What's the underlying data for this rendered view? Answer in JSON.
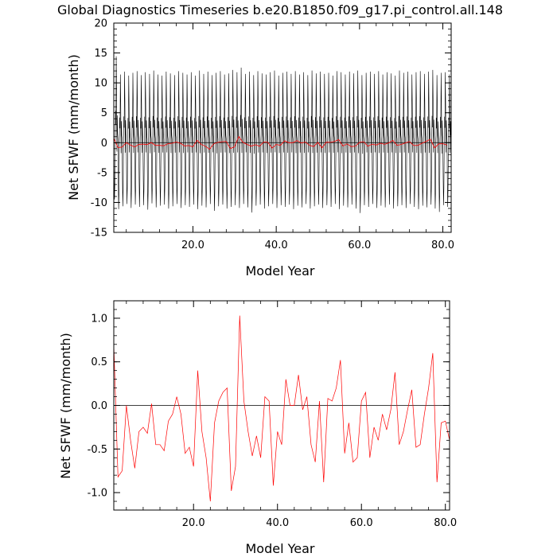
{
  "title": "Global Diagnostics Timeseries b.e20.B1850.f09_g17.pi_control.all.148",
  "chart_data": [
    {
      "type": "line",
      "xlabel": "Model Year",
      "ylabel": "Net SFWF (mm/month)",
      "xlim": [
        1,
        82
      ],
      "ylim": [
        -15,
        20
      ],
      "xticks": [
        20,
        40,
        60,
        80
      ],
      "xtick_labels": [
        "20.0",
        "40.0",
        "60.0",
        "80.0"
      ],
      "yticks": [
        -15,
        -10,
        -5,
        0,
        5,
        10,
        15,
        20
      ],
      "ytick_labels": [
        "-15",
        "-10",
        "-5",
        "0",
        "5",
        "10",
        "15",
        "20"
      ],
      "reference_line": 0,
      "monthly_series": {
        "color": "#000000",
        "start_year": 1,
        "points_per_year": 12,
        "yearly_max": [
          15.2,
          12.0,
          12.5,
          11.8,
          12.3,
          12.6,
          11.9,
          12.4,
          12.1,
          12.7,
          12.0,
          11.8,
          12.5,
          12.2,
          11.9,
          12.6,
          12.3,
          12.0,
          12.4,
          11.8,
          12.7,
          12.1,
          12.5,
          11.9,
          12.3,
          12.6,
          12.0,
          12.2,
          12.8,
          12.4,
          13.2,
          12.1,
          12.5,
          11.9,
          12.6,
          12.2,
          12.0,
          12.4,
          12.7,
          11.8,
          12.3,
          12.5,
          12.1,
          12.6,
          12.0,
          12.4,
          11.9,
          12.7,
          12.2,
          12.5,
          12.1,
          12.3,
          11.8,
          12.6,
          12.4,
          12.0,
          12.5,
          12.2,
          12.7,
          11.9,
          12.3,
          12.5,
          12.1,
          12.6,
          12.0,
          12.4,
          12.2,
          11.8,
          12.7,
          12.3,
          12.5,
          12.0,
          12.4,
          12.6,
          12.1,
          12.5,
          12.8,
          11.9,
          12.3,
          12.4,
          12.0
        ],
        "yearly_min": [
          -10.0,
          -11.7,
          -11.2,
          -10.8,
          -11.5,
          -10.9,
          -11.3,
          -11.0,
          -11.8,
          -10.7,
          -11.4,
          -11.1,
          -10.9,
          -11.6,
          -11.2,
          -10.8,
          -11.5,
          -11.0,
          -11.3,
          -10.9,
          -11.7,
          -11.1,
          -11.4,
          -10.8,
          -12.0,
          -11.2,
          -10.9,
          -11.6,
          -11.3,
          -11.0,
          -11.5,
          -10.8,
          -11.4,
          -12.3,
          -11.1,
          -10.9,
          -11.6,
          -11.2,
          -10.8,
          -11.5,
          -11.0,
          -11.3,
          -10.9,
          -11.7,
          -11.1,
          -11.4,
          -10.8,
          -11.6,
          -11.2,
          -10.9,
          -11.5,
          -11.0,
          -11.3,
          -10.8,
          -11.7,
          -11.1,
          -11.4,
          -10.9,
          -11.6,
          -12.4,
          -11.0,
          -11.3,
          -10.8,
          -11.5,
          -11.1,
          -11.4,
          -10.9,
          -11.6,
          -11.2,
          -11.0,
          -11.5,
          -10.8,
          -11.3,
          -11.7,
          -11.1,
          -11.4,
          -10.9,
          -11.6,
          -12.2,
          -11.0,
          -11.3
        ]
      },
      "annual_series": {
        "color": "#ff0000",
        "x_start": 1,
        "x_step": 1,
        "values": [
          0.7,
          -0.82,
          -0.75,
          0.0,
          -0.4,
          -0.72,
          -0.3,
          -0.25,
          -0.32,
          0.02,
          -0.45,
          -0.45,
          -0.52,
          -0.18,
          -0.1,
          0.1,
          -0.1,
          -0.55,
          -0.48,
          -0.7,
          0.4,
          -0.3,
          -0.6,
          -1.1,
          -0.2,
          0.05,
          0.15,
          0.2,
          -0.98,
          -0.7,
          1.03,
          0.05,
          -0.3,
          -0.58,
          -0.35,
          -0.6,
          0.1,
          0.05,
          -0.92,
          -0.3,
          -0.45,
          0.3,
          0.0,
          0.0,
          0.35,
          -0.05,
          0.1,
          -0.45,
          -0.65,
          0.05,
          -0.88,
          0.08,
          0.05,
          0.2,
          0.52,
          -0.55,
          -0.2,
          -0.65,
          -0.6,
          0.05,
          0.15,
          -0.6,
          -0.25,
          -0.4,
          -0.1,
          -0.28,
          -0.05,
          0.38,
          -0.45,
          -0.3,
          -0.05,
          0.18,
          -0.48,
          -0.45,
          -0.1,
          0.2,
          0.6,
          -0.88,
          -0.2,
          -0.18,
          -0.4
        ]
      }
    },
    {
      "type": "line",
      "xlabel": "Model Year",
      "ylabel": "Net SFWF (mm/month)",
      "xlim": [
        1,
        81
      ],
      "ylim": [
        -1.2,
        1.2
      ],
      "xticks": [
        20,
        40,
        60,
        80
      ],
      "xtick_labels": [
        "20.0",
        "40.0",
        "60.0",
        "80.0"
      ],
      "yticks": [
        -1.0,
        -0.5,
        0.0,
        0.5,
        1.0
      ],
      "ytick_labels": [
        "-1.0",
        "-0.5",
        "0.0",
        "0.5",
        "1.0"
      ],
      "reference_line": 0,
      "series": {
        "color": "#ff0000",
        "x_start": 1,
        "x_step": 1,
        "values": [
          0.7,
          -0.82,
          -0.75,
          0.0,
          -0.4,
          -0.72,
          -0.3,
          -0.25,
          -0.32,
          0.02,
          -0.45,
          -0.45,
          -0.52,
          -0.18,
          -0.1,
          0.1,
          -0.1,
          -0.55,
          -0.48,
          -0.7,
          0.4,
          -0.3,
          -0.6,
          -1.1,
          -0.2,
          0.05,
          0.15,
          0.2,
          -0.98,
          -0.7,
          1.03,
          0.05,
          -0.3,
          -0.58,
          -0.35,
          -0.6,
          0.1,
          0.05,
          -0.92,
          -0.3,
          -0.45,
          0.3,
          0.0,
          0.0,
          0.35,
          -0.05,
          0.1,
          -0.45,
          -0.65,
          0.05,
          -0.88,
          0.08,
          0.05,
          0.2,
          0.52,
          -0.55,
          -0.2,
          -0.65,
          -0.6,
          0.05,
          0.15,
          -0.6,
          -0.25,
          -0.4,
          -0.1,
          -0.28,
          -0.05,
          0.38,
          -0.45,
          -0.3,
          -0.05,
          0.18,
          -0.48,
          -0.45,
          -0.1,
          0.2,
          0.6,
          -0.88,
          -0.2,
          -0.18,
          -0.4
        ]
      }
    }
  ]
}
